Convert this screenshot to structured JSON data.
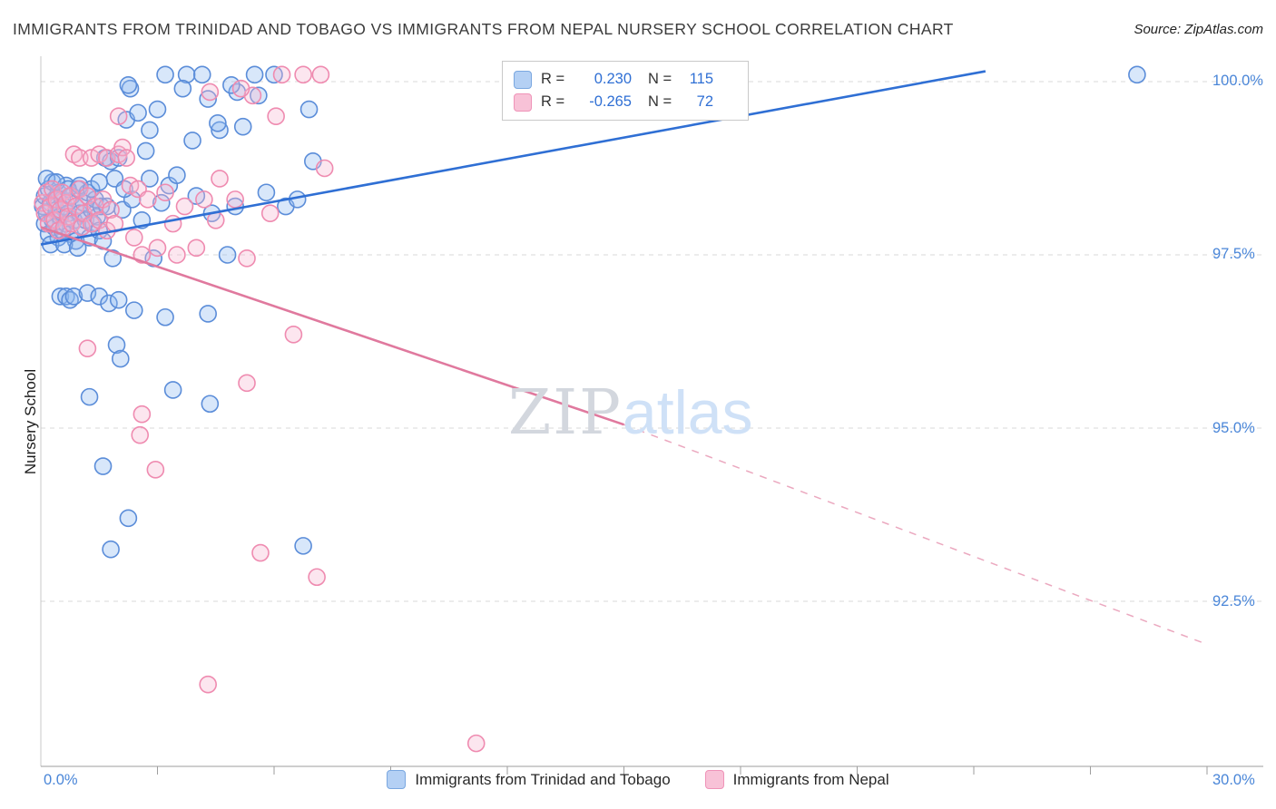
{
  "header": {
    "title": "IMMIGRANTS FROM TRINIDAD AND TOBAGO VS IMMIGRANTS FROM NEPAL NURSERY SCHOOL CORRELATION CHART",
    "source": "Source: ZipAtlas.com"
  },
  "axes": {
    "y_label": "Nursery School",
    "y_ticks": [
      "100.0%",
      "97.5%",
      "95.0%",
      "92.5%"
    ],
    "x_min_label": "0.0%",
    "x_max_label": "30.0%"
  },
  "legend_box": {
    "rows": [
      {
        "r_label": "R =",
        "r_value": "0.230",
        "n_label": "N =",
        "n_value": "115"
      },
      {
        "r_label": "R =",
        "r_value": "-0.265",
        "n_label": "N =",
        "n_value": "72"
      }
    ]
  },
  "watermark": {
    "zip": "ZIP",
    "atlas": "atlas"
  },
  "bottom_legend": [
    {
      "label": "Immigrants from Trinidad and Tobago"
    },
    {
      "label": "Immigrants from Nepal"
    }
  ],
  "colors": {
    "blue_stroke": "#5b8dd9",
    "blue_fill": "#8fbaf0",
    "blue_line": "#2f6fd4",
    "pink_stroke": "#ef8bb0",
    "pink_fill": "#f7b8d0",
    "pink_line": "#e0799e",
    "grid": "#d8d8d8",
    "axis": "#9e9e9e",
    "tick_label": "#4a86d8"
  },
  "chart_data": {
    "type": "scatter",
    "title": "Immigrants from Trinidad and Tobago vs Immigrants from Nepal Nursery School",
    "xlabel": "",
    "ylabel": "Nursery School",
    "xlim": [
      0,
      30
    ],
    "ylim": [
      90.0,
      100.3
    ],
    "y_gridlines": [
      100.0,
      97.5,
      95.0,
      92.5
    ],
    "x_ticks": [
      3,
      6,
      9,
      12,
      15,
      18,
      21,
      24,
      27,
      30
    ],
    "grid": true,
    "legend_position": "top-center",
    "series": [
      {
        "name": "Immigrants from Trinidad and Tobago",
        "R": 0.23,
        "N": 115,
        "stroke": "#5b8dd9",
        "fill": "#8fbaf0",
        "points": [
          [
            0.05,
            98.2
          ],
          [
            0.1,
            98.35
          ],
          [
            0.1,
            97.95
          ],
          [
            0.15,
            98.1
          ],
          [
            0.2,
            98.45
          ],
          [
            0.2,
            97.8
          ],
          [
            0.25,
            98.25
          ],
          [
            0.3,
            98.0
          ],
          [
            0.3,
            98.55
          ],
          [
            0.35,
            97.9
          ],
          [
            0.35,
            98.3
          ],
          [
            0.4,
            98.15
          ],
          [
            0.45,
            97.75
          ],
          [
            0.45,
            98.4
          ],
          [
            0.5,
            98.05
          ],
          [
            0.55,
            98.3
          ],
          [
            0.55,
            97.85
          ],
          [
            0.6,
            98.2
          ],
          [
            0.65,
            97.95
          ],
          [
            0.65,
            98.5
          ],
          [
            0.7,
            98.1
          ],
          [
            0.75,
            97.8
          ],
          [
            0.8,
            98.35
          ],
          [
            0.85,
            98.0
          ],
          [
            0.9,
            98.2
          ],
          [
            0.9,
            97.7
          ],
          [
            0.95,
            98.45
          ],
          [
            1.0,
            98.1
          ],
          [
            1.05,
            97.9
          ],
          [
            1.1,
            98.25
          ],
          [
            1.15,
            98.0
          ],
          [
            1.2,
            98.4
          ],
          [
            1.25,
            97.75
          ],
          [
            1.3,
            98.15
          ],
          [
            1.35,
            97.95
          ],
          [
            1.4,
            98.3
          ],
          [
            1.45,
            98.05
          ],
          [
            1.5,
            97.85
          ],
          [
            1.55,
            98.2
          ],
          [
            1.6,
            97.7
          ],
          [
            1.65,
            98.9
          ],
          [
            1.7,
            98.2
          ],
          [
            1.8,
            98.85
          ],
          [
            1.85,
            97.45
          ],
          [
            1.9,
            98.6
          ],
          [
            2.0,
            98.9
          ],
          [
            2.1,
            98.15
          ],
          [
            2.2,
            99.45
          ],
          [
            2.3,
            99.9
          ],
          [
            2.35,
            98.3
          ],
          [
            2.5,
            99.55
          ],
          [
            2.6,
            98.0
          ],
          [
            2.7,
            99.0
          ],
          [
            2.8,
            98.6
          ],
          [
            2.9,
            97.45
          ],
          [
            3.0,
            99.6
          ],
          [
            3.1,
            98.25
          ],
          [
            3.3,
            98.5
          ],
          [
            3.5,
            98.65
          ],
          [
            3.9,
            99.15
          ],
          [
            4.0,
            98.35
          ],
          [
            4.4,
            98.1
          ],
          [
            4.6,
            99.3
          ],
          [
            4.8,
            97.5
          ],
          [
            5.0,
            98.2
          ],
          [
            5.2,
            99.35
          ],
          [
            5.8,
            98.4
          ],
          [
            6.3,
            98.2
          ],
          [
            6.6,
            98.3
          ],
          [
            7.0,
            98.85
          ],
          [
            3.2,
            100.1
          ],
          [
            3.75,
            100.1
          ],
          [
            4.15,
            100.1
          ],
          [
            5.5,
            100.1
          ],
          [
            6.0,
            100.1
          ],
          [
            2.25,
            99.95
          ],
          [
            3.65,
            99.9
          ],
          [
            4.3,
            99.75
          ],
          [
            5.05,
            99.85
          ],
          [
            5.6,
            99.8
          ],
          [
            4.55,
            99.4
          ],
          [
            2.8,
            99.3
          ],
          [
            4.9,
            99.95
          ],
          [
            6.9,
            99.6
          ],
          [
            28.2,
            100.1
          ],
          [
            0.5,
            96.9
          ],
          [
            0.65,
            96.9
          ],
          [
            0.75,
            96.85
          ],
          [
            0.85,
            96.9
          ],
          [
            1.2,
            96.95
          ],
          [
            1.5,
            96.9
          ],
          [
            1.75,
            96.8
          ],
          [
            2.0,
            96.85
          ],
          [
            2.4,
            96.7
          ],
          [
            3.2,
            96.6
          ],
          [
            4.3,
            96.65
          ],
          [
            1.95,
            96.2
          ],
          [
            2.05,
            96.0
          ],
          [
            1.25,
            95.45
          ],
          [
            3.4,
            95.55
          ],
          [
            4.35,
            95.35
          ],
          [
            1.6,
            94.45
          ],
          [
            2.25,
            93.7
          ],
          [
            1.8,
            93.25
          ],
          [
            6.75,
            93.3
          ],
          [
            0.15,
            98.6
          ],
          [
            0.4,
            98.55
          ],
          [
            0.7,
            98.45
          ],
          [
            1.0,
            98.5
          ],
          [
            1.3,
            98.45
          ],
          [
            1.5,
            98.55
          ],
          [
            2.15,
            98.45
          ],
          [
            0.25,
            97.65
          ],
          [
            0.6,
            97.65
          ],
          [
            0.95,
            97.6
          ]
        ]
      },
      {
        "name": "Immigrants from Nepal",
        "R": -0.265,
        "N": 72,
        "stroke": "#ef8bb0",
        "fill": "#f7b8d0",
        "points": [
          [
            0.05,
            98.25
          ],
          [
            0.1,
            98.1
          ],
          [
            0.15,
            98.4
          ],
          [
            0.2,
            97.95
          ],
          [
            0.25,
            98.2
          ],
          [
            0.3,
            98.45
          ],
          [
            0.35,
            98.0
          ],
          [
            0.4,
            98.3
          ],
          [
            0.45,
            97.85
          ],
          [
            0.5,
            98.15
          ],
          [
            0.55,
            98.4
          ],
          [
            0.6,
            97.9
          ],
          [
            0.65,
            98.25
          ],
          [
            0.7,
            98.05
          ],
          [
            0.75,
            98.35
          ],
          [
            0.8,
            97.95
          ],
          [
            0.9,
            98.2
          ],
          [
            1.0,
            98.45
          ],
          [
            1.05,
            97.9
          ],
          [
            1.1,
            98.1
          ],
          [
            1.2,
            98.35
          ],
          [
            1.3,
            97.95
          ],
          [
            1.4,
            98.2
          ],
          [
            1.5,
            98.0
          ],
          [
            1.6,
            98.3
          ],
          [
            1.7,
            97.85
          ],
          [
            1.8,
            98.15
          ],
          [
            1.9,
            97.95
          ],
          [
            0.85,
            98.95
          ],
          [
            1.0,
            98.9
          ],
          [
            1.3,
            98.9
          ],
          [
            1.5,
            98.95
          ],
          [
            1.7,
            98.9
          ],
          [
            2.0,
            98.95
          ],
          [
            2.1,
            99.05
          ],
          [
            2.2,
            98.9
          ],
          [
            2.3,
            98.5
          ],
          [
            2.5,
            98.45
          ],
          [
            2.6,
            97.5
          ],
          [
            2.75,
            98.3
          ],
          [
            3.0,
            97.6
          ],
          [
            3.2,
            98.4
          ],
          [
            3.5,
            97.5
          ],
          [
            3.7,
            98.2
          ],
          [
            4.0,
            97.6
          ],
          [
            4.2,
            98.3
          ],
          [
            4.5,
            98.0
          ],
          [
            5.0,
            98.3
          ],
          [
            5.3,
            97.45
          ],
          [
            5.9,
            98.1
          ],
          [
            7.3,
            98.75
          ],
          [
            4.6,
            98.6
          ],
          [
            2.4,
            97.75
          ],
          [
            3.4,
            97.95
          ],
          [
            6.2,
            100.1
          ],
          [
            6.75,
            100.1
          ],
          [
            7.2,
            100.1
          ],
          [
            5.45,
            99.8
          ],
          [
            6.05,
            99.5
          ],
          [
            4.35,
            99.85
          ],
          [
            5.15,
            99.9
          ],
          [
            2.0,
            99.5
          ],
          [
            1.2,
            96.15
          ],
          [
            6.5,
            96.35
          ],
          [
            5.3,
            95.65
          ],
          [
            2.6,
            95.2
          ],
          [
            2.55,
            94.9
          ],
          [
            2.95,
            94.4
          ],
          [
            5.65,
            93.2
          ],
          [
            7.1,
            92.85
          ],
          [
            4.3,
            91.3
          ],
          [
            11.2,
            90.45
          ]
        ]
      }
    ],
    "trend_lines": [
      {
        "series": "Immigrants from Trinidad and Tobago",
        "style": "solid",
        "color": "#2f6fd4",
        "start": [
          0,
          97.65
        ],
        "end": [
          24.3,
          100.15
        ]
      },
      {
        "series": "Immigrants from Nepal",
        "style": "solid",
        "color": "#e0799e",
        "start": [
          0,
          97.9
        ],
        "end": [
          15,
          95.05
        ]
      },
      {
        "series": "Immigrants from Nepal",
        "style": "dashed",
        "color": "#eba8bf",
        "start": [
          15,
          95.05
        ],
        "end": [
          29.9,
          91.9
        ]
      }
    ]
  }
}
